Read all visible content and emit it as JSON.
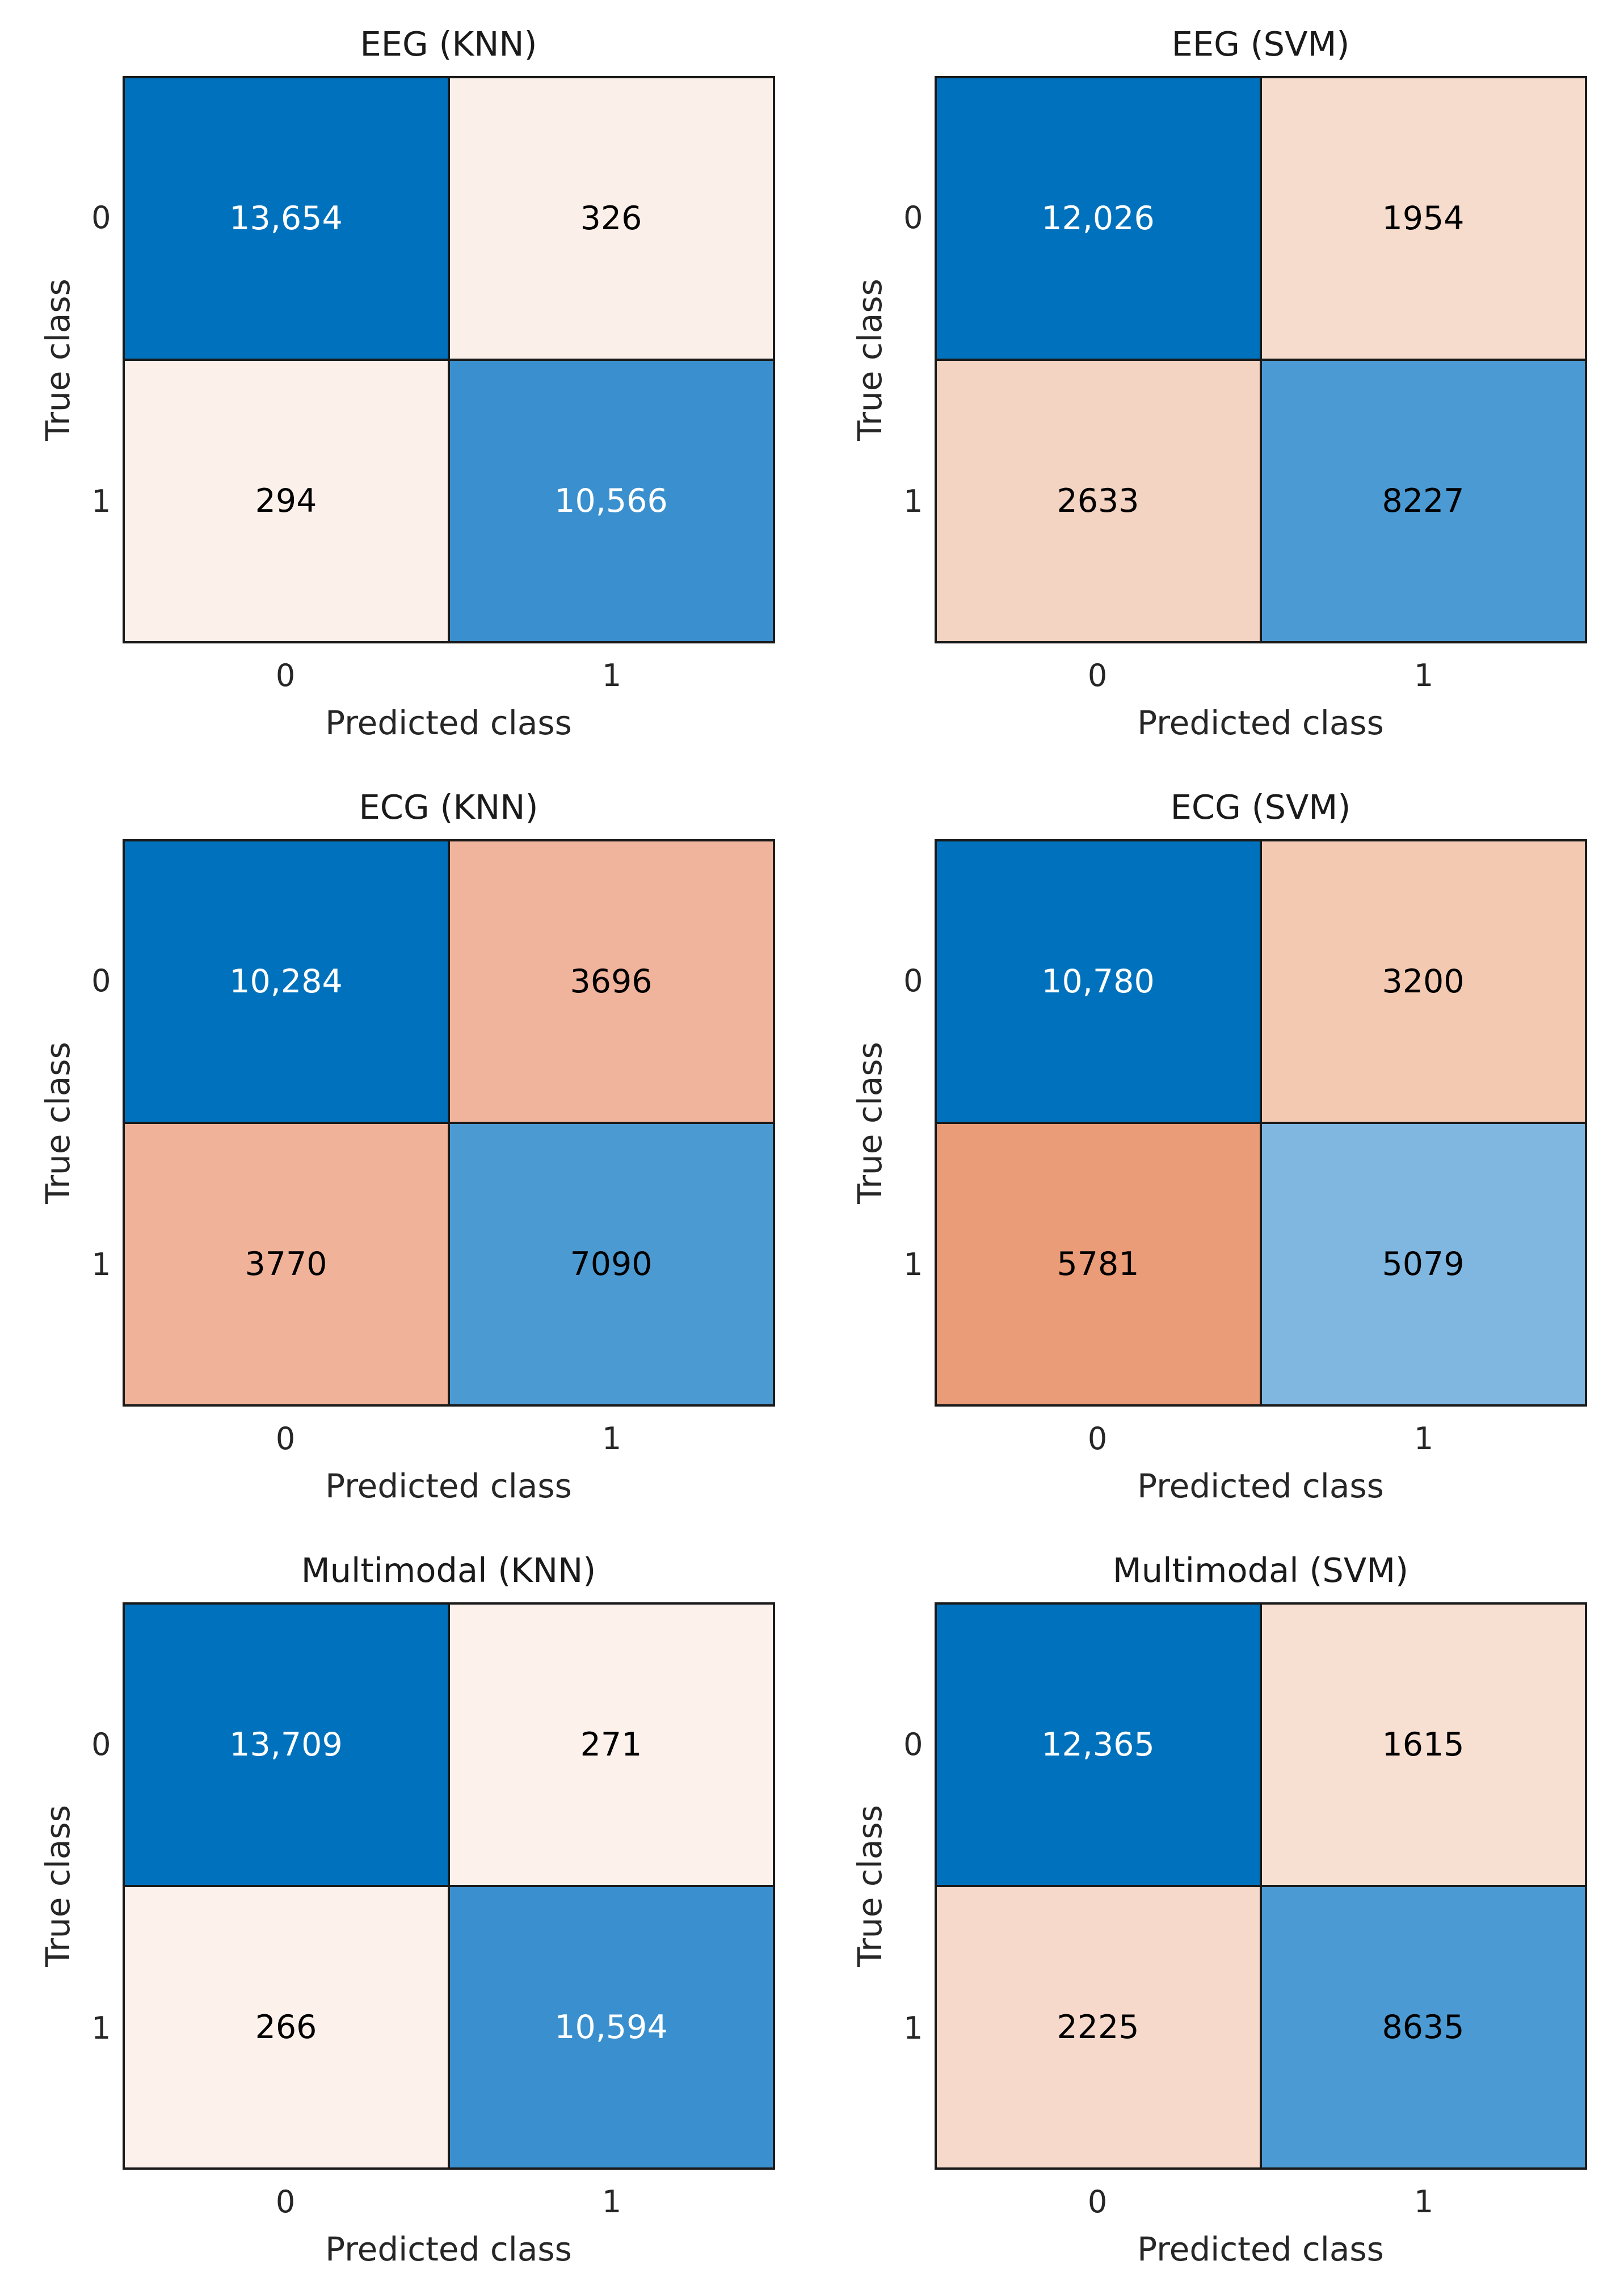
{
  "figure": {
    "ylabel": "True class",
    "xlabel": "Predicted class",
    "tick_labels": [
      "0",
      "1"
    ]
  },
  "charts": [
    {
      "title": "EEG (KNN)",
      "cells": [
        {
          "value": "13,654",
          "bg": "#0072bd",
          "fg": "#ffffff"
        },
        {
          "value": "326",
          "bg": "#fbf0e9",
          "fg": "#000000"
        },
        {
          "value": "294",
          "bg": "#fbf1ea",
          "fg": "#000000"
        },
        {
          "value": "10,566",
          "bg": "#3a90ce",
          "fg": "#ffffff"
        }
      ]
    },
    {
      "title": "EEG (SVM)",
      "cells": [
        {
          "value": "12,026",
          "bg": "#0072bd",
          "fg": "#ffffff"
        },
        {
          "value": "1954",
          "bg": "#f6dccd",
          "fg": "#000000"
        },
        {
          "value": "2633",
          "bg": "#f3d3c2",
          "fg": "#000000"
        },
        {
          "value": "8227",
          "bg": "#4c9ad3",
          "fg": "#000000"
        }
      ]
    },
    {
      "title": "ECG (KNN)",
      "cells": [
        {
          "value": "10,284",
          "bg": "#0072bd",
          "fg": "#ffffff"
        },
        {
          "value": "3696",
          "bg": "#f0b49c",
          "fg": "#000000"
        },
        {
          "value": "3770",
          "bg": "#f0b39a",
          "fg": "#000000"
        },
        {
          "value": "7090",
          "bg": "#4c9ad2",
          "fg": "#000000"
        }
      ]
    },
    {
      "title": "ECG (SVM)",
      "cells": [
        {
          "value": "10,780",
          "bg": "#0072bd",
          "fg": "#ffffff"
        },
        {
          "value": "3200",
          "bg": "#f3c9b2",
          "fg": "#000000"
        },
        {
          "value": "5781",
          "bg": "#ea9b77",
          "fg": "#000000"
        },
        {
          "value": "5079",
          "bg": "#80b7e0",
          "fg": "#000000"
        }
      ]
    },
    {
      "title": "Multimodal (KNN)",
      "cells": [
        {
          "value": "13,709",
          "bg": "#0072bd",
          "fg": "#ffffff"
        },
        {
          "value": "271",
          "bg": "#fcf1eb",
          "fg": "#000000"
        },
        {
          "value": "266",
          "bg": "#fcf1eb",
          "fg": "#000000"
        },
        {
          "value": "10,594",
          "bg": "#3a90ce",
          "fg": "#ffffff"
        }
      ]
    },
    {
      "title": "Multimodal (SVM)",
      "cells": [
        {
          "value": "12,365",
          "bg": "#0072bd",
          "fg": "#ffffff"
        },
        {
          "value": "1615",
          "bg": "#f7dfd1",
          "fg": "#000000"
        },
        {
          "value": "2225",
          "bg": "#f6d9ca",
          "fg": "#000000"
        },
        {
          "value": "8635",
          "bg": "#4c9ad3",
          "fg": "#000000"
        }
      ]
    }
  ],
  "chart_data": [
    {
      "type": "heatmap",
      "subtype": "confusion_matrix",
      "title": "EEG (KNN)",
      "xlabel": "Predicted class",
      "ylabel": "True class",
      "x_categories": [
        "0",
        "1"
      ],
      "y_categories": [
        "0",
        "1"
      ],
      "matrix": [
        [
          13654,
          326
        ],
        [
          294,
          10566
        ]
      ],
      "diagonal_color": "#0072bd",
      "offdiagonal_color": "#d95319",
      "grid": false,
      "legend": "none"
    },
    {
      "type": "heatmap",
      "subtype": "confusion_matrix",
      "title": "EEG (SVM)",
      "xlabel": "Predicted class",
      "ylabel": "True class",
      "x_categories": [
        "0",
        "1"
      ],
      "y_categories": [
        "0",
        "1"
      ],
      "matrix": [
        [
          12026,
          1954
        ],
        [
          2633,
          8227
        ]
      ],
      "diagonal_color": "#0072bd",
      "offdiagonal_color": "#d95319",
      "grid": false,
      "legend": "none"
    },
    {
      "type": "heatmap",
      "subtype": "confusion_matrix",
      "title": "ECG (KNN)",
      "xlabel": "Predicted class",
      "ylabel": "True class",
      "x_categories": [
        "0",
        "1"
      ],
      "y_categories": [
        "0",
        "1"
      ],
      "matrix": [
        [
          10284,
          3696
        ],
        [
          3770,
          7090
        ]
      ],
      "diagonal_color": "#0072bd",
      "offdiagonal_color": "#d95319",
      "grid": false,
      "legend": "none"
    },
    {
      "type": "heatmap",
      "subtype": "confusion_matrix",
      "title": "ECG (SVM)",
      "xlabel": "Predicted class",
      "ylabel": "True class",
      "x_categories": [
        "0",
        "1"
      ],
      "y_categories": [
        "0",
        "1"
      ],
      "matrix": [
        [
          10780,
          3200
        ],
        [
          5781,
          5079
        ]
      ],
      "diagonal_color": "#0072bd",
      "offdiagonal_color": "#d95319",
      "grid": false,
      "legend": "none"
    },
    {
      "type": "heatmap",
      "subtype": "confusion_matrix",
      "title": "Multimodal (KNN)",
      "xlabel": "Predicted class",
      "ylabel": "True class",
      "x_categories": [
        "0",
        "1"
      ],
      "y_categories": [
        "0",
        "1"
      ],
      "matrix": [
        [
          13709,
          271
        ],
        [
          266,
          10594
        ]
      ],
      "diagonal_color": "#0072bd",
      "offdiagonal_color": "#d95319",
      "grid": false,
      "legend": "none"
    },
    {
      "type": "heatmap",
      "subtype": "confusion_matrix",
      "title": "Multimodal (SVM)",
      "xlabel": "Predicted class",
      "ylabel": "True class",
      "x_categories": [
        "0",
        "1"
      ],
      "y_categories": [
        "0",
        "1"
      ],
      "matrix": [
        [
          12365,
          1615
        ],
        [
          2225,
          8635
        ]
      ],
      "diagonal_color": "#0072bd",
      "offdiagonal_color": "#d95319",
      "grid": false,
      "legend": "none"
    }
  ]
}
